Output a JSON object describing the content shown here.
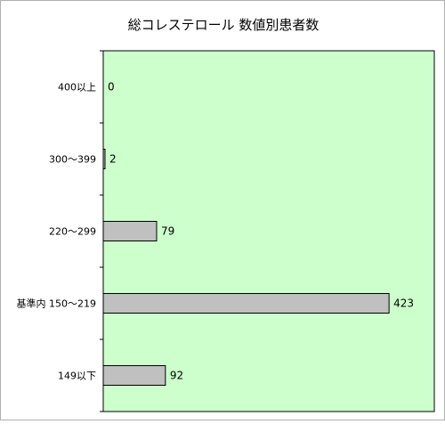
{
  "chart_data": {
    "type": "bar",
    "orientation": "horizontal",
    "title": "総コレステロール 数値別患者数",
    "xlabel": "",
    "ylabel": "",
    "categories": [
      "400以上",
      "300～399",
      "220～299",
      "基準内 150～219",
      "149以下"
    ],
    "values": [
      0,
      2,
      79,
      423,
      92
    ],
    "xlim": [
      0,
      490
    ],
    "grid": false,
    "legend": "none",
    "colors": {
      "plot_background": "#ccffcc",
      "bar_fill": "#c0c0c0",
      "bar_stroke": "#000000",
      "axis": "#000000"
    }
  }
}
